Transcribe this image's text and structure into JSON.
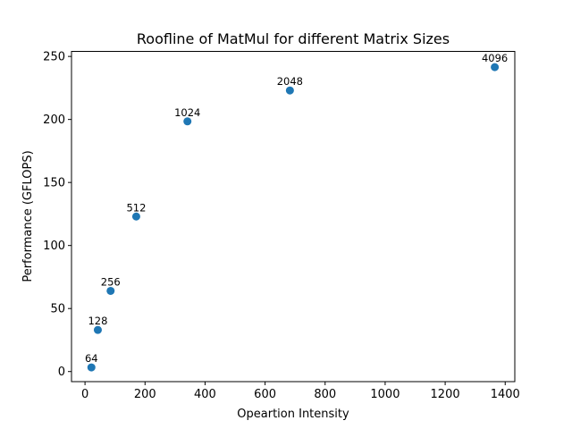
{
  "chart_data": {
    "type": "scatter",
    "title": "Roofline of MatMul for different Matrix Sizes",
    "xlabel": "Opeartion Intensity",
    "ylabel": "Performance (GFLOPS)",
    "xlim": [
      -45,
      1432
    ],
    "ylim": [
      -8,
      254
    ],
    "xticks": [
      0,
      200,
      400,
      600,
      800,
      1000,
      1200,
      1400
    ],
    "yticks": [
      0,
      50,
      100,
      150,
      200,
      250
    ],
    "grid": false,
    "marker_color": "#1f77b4",
    "points": [
      {
        "label": "64",
        "x": 21.3,
        "y": 3.3
      },
      {
        "label": "128",
        "x": 42.7,
        "y": 33
      },
      {
        "label": "256",
        "x": 85.3,
        "y": 64
      },
      {
        "label": "512",
        "x": 170.7,
        "y": 123
      },
      {
        "label": "1024",
        "x": 341.3,
        "y": 198.5
      },
      {
        "label": "2048",
        "x": 682.7,
        "y": 223
      },
      {
        "label": "4096",
        "x": 1365.3,
        "y": 241.5
      }
    ]
  }
}
